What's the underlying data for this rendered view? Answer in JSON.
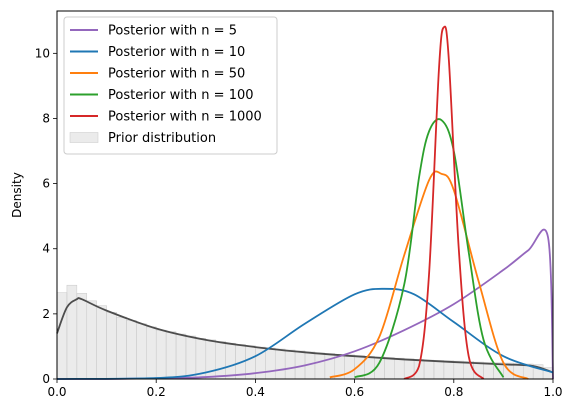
{
  "chart_data": {
    "type": "line",
    "title": "",
    "xlabel": "",
    "ylabel": "Density",
    "xlim": [
      0,
      1
    ],
    "ylim": [
      0,
      11.3
    ],
    "xticks": [
      0.0,
      0.2,
      0.4,
      0.6,
      0.8,
      1.0
    ],
    "xtick_labels": [
      "0.0",
      "0.2",
      "0.4",
      "0.6",
      "0.8",
      "1.0"
    ],
    "yticks": [
      0,
      2,
      4,
      6,
      8,
      10
    ],
    "ytick_labels": [
      "0",
      "2",
      "4",
      "6",
      "8",
      "10"
    ],
    "grid": false,
    "legend_position": "top-left",
    "series": [
      {
        "name": "Posterior with n = 5",
        "color": "#9467bd",
        "x": [
          0.0,
          0.1,
          0.2,
          0.3,
          0.4,
          0.5,
          0.6,
          0.7,
          0.8,
          0.9,
          0.95,
          0.99,
          1.0
        ],
        "y": [
          0.0,
          0.0,
          0.02,
          0.06,
          0.18,
          0.42,
          0.85,
          1.5,
          2.3,
          3.35,
          3.95,
          4.35,
          0.0
        ]
      },
      {
        "name": "Posterior with n = 10",
        "color": "#1f77b4",
        "x": [
          0.0,
          0.2,
          0.3,
          0.4,
          0.5,
          0.6,
          0.66,
          0.72,
          0.8,
          0.9,
          1.0
        ],
        "y": [
          0.0,
          0.03,
          0.2,
          0.7,
          1.7,
          2.6,
          2.77,
          2.6,
          1.75,
          0.7,
          0.2
        ]
      },
      {
        "name": "Posterior with n = 50",
        "color": "#ff7f0e",
        "x": [
          0.55,
          0.6,
          0.65,
          0.7,
          0.75,
          0.775,
          0.8,
          0.85,
          0.9,
          0.95
        ],
        "y": [
          0.05,
          0.3,
          1.3,
          3.8,
          6.1,
          6.3,
          5.8,
          3.0,
          0.5,
          0.0
        ]
      },
      {
        "name": "Posterior with n = 100",
        "color": "#2ca02c",
        "x": [
          0.6,
          0.65,
          0.7,
          0.73,
          0.75,
          0.775,
          0.8,
          0.83,
          0.86,
          0.9
        ],
        "y": [
          0.05,
          0.5,
          2.9,
          6.2,
          7.6,
          7.95,
          7.0,
          3.9,
          1.2,
          0.05
        ]
      },
      {
        "name": "Posterior with n = 1000",
        "color": "#d62728",
        "x": [
          0.7,
          0.73,
          0.75,
          0.77,
          0.78,
          0.79,
          0.81,
          0.83,
          0.86
        ],
        "y": [
          0.0,
          0.4,
          3.2,
          9.5,
          10.8,
          9.8,
          4.0,
          0.7,
          0.0
        ]
      }
    ],
    "prior_density": {
      "color": "#4d4d4d",
      "x": [
        0.0,
        0.02,
        0.04,
        0.05,
        0.1,
        0.2,
        0.3,
        0.4,
        0.5,
        0.6,
        0.7,
        0.8,
        0.9,
        0.96,
        1.0
      ],
      "y": [
        1.4,
        2.2,
        2.45,
        2.45,
        2.1,
        1.55,
        1.2,
        0.98,
        0.82,
        0.7,
        0.6,
        0.52,
        0.45,
        0.4,
        0.2
      ]
    },
    "prior_histogram": {
      "name": "Prior distribution",
      "color": "#d3d3d3",
      "bin_edges_start": 0.0,
      "bin_width": 0.02,
      "heights": [
        2.65,
        2.88,
        2.63,
        2.4,
        2.25,
        2.05,
        1.9,
        1.8,
        1.7,
        1.6,
        1.5,
        1.45,
        1.38,
        1.32,
        1.25,
        1.2,
        1.15,
        1.1,
        1.06,
        1.02,
        0.98,
        0.95,
        0.92,
        0.89,
        0.86,
        0.83,
        0.8,
        0.78,
        0.76,
        0.74,
        0.72,
        0.7,
        0.68,
        0.66,
        0.64,
        0.62,
        0.6,
        0.58,
        0.57,
        0.56,
        0.55,
        0.54,
        0.52,
        0.51,
        0.5,
        0.49,
        0.48,
        0.46,
        0.44,
        0.35
      ]
    }
  }
}
